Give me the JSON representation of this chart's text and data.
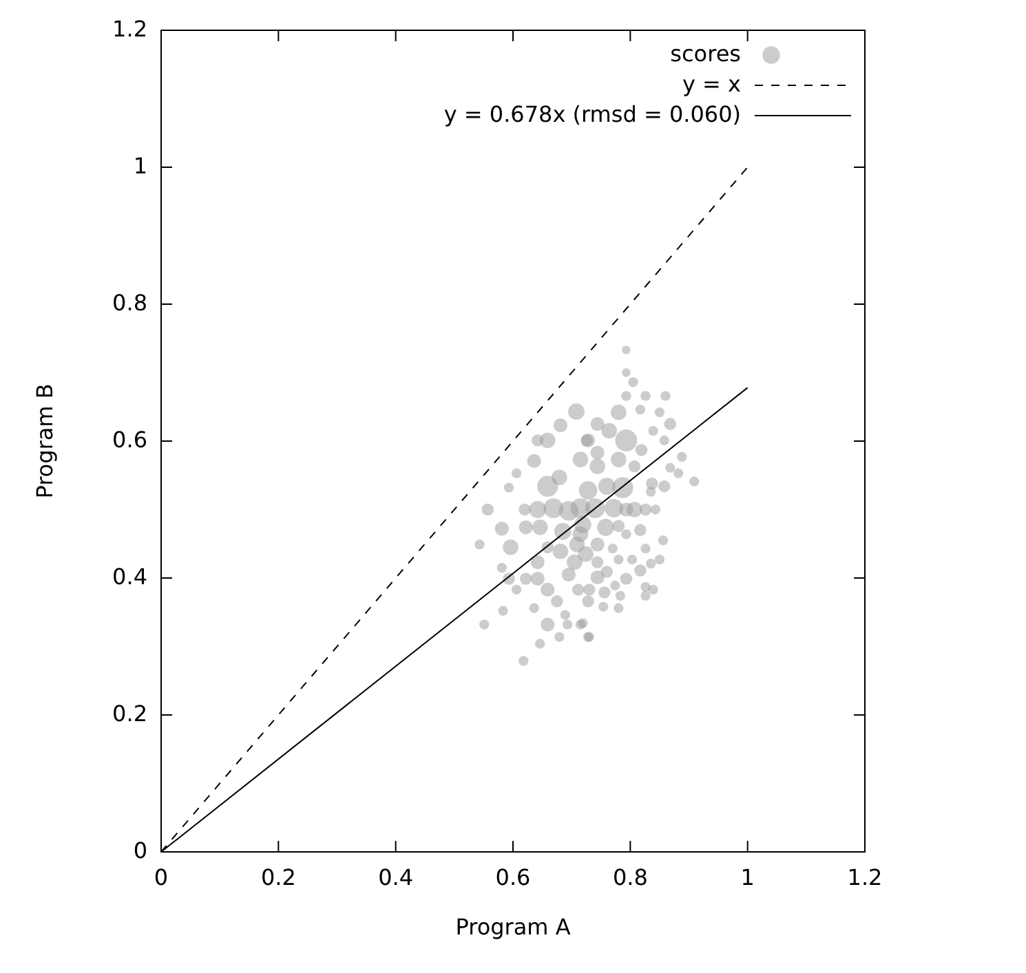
{
  "chart_data": {
    "type": "scatter",
    "xlabel": "Program A",
    "ylabel": "Program B",
    "xlim": [
      0,
      1.2
    ],
    "ylim": [
      0,
      1.2
    ],
    "xticks": [
      0,
      0.2,
      0.4,
      0.6,
      0.8,
      1,
      1.2
    ],
    "yticks": [
      0,
      0.2,
      0.4,
      0.6,
      0.8,
      1,
      1.2
    ],
    "legend": "top right",
    "series": [
      {
        "name": "scores",
        "color": "#999999",
        "marker": "circle",
        "x": [
          0.708,
          0.681,
          0.642,
          0.659,
          0.636,
          0.606,
          0.593,
          0.659,
          0.679,
          0.557,
          0.62,
          0.642,
          0.669,
          0.695,
          0.715,
          0.622,
          0.646,
          0.685,
          0.715,
          0.581,
          0.543,
          0.596,
          0.659,
          0.681,
          0.709,
          0.581,
          0.642,
          0.705,
          0.593,
          0.622,
          0.642,
          0.695,
          0.606,
          0.659,
          0.711,
          0.675,
          0.583,
          0.636,
          0.689,
          0.551,
          0.659,
          0.693,
          0.715,
          0.679,
          0.646,
          0.618,
          0.728,
          0.728,
          0.715,
          0.793,
          0.793,
          0.805,
          0.793,
          0.826,
          0.86,
          0.78,
          0.817,
          0.85,
          0.868,
          0.744,
          0.764,
          0.793,
          0.839,
          0.858,
          0.819,
          0.726,
          0.744,
          0.78,
          0.888,
          0.744,
          0.807,
          0.868,
          0.882,
          0.909,
          0.837,
          0.858,
          0.787,
          0.76,
          0.728,
          0.835,
          0.807,
          0.772,
          0.74,
          0.826,
          0.843,
          0.793,
          0.719,
          0.758,
          0.78,
          0.817,
          0.793,
          0.856,
          0.744,
          0.77,
          0.826,
          0.724,
          0.78,
          0.803,
          0.85,
          0.835,
          0.744,
          0.817,
          0.76,
          0.793,
          0.744,
          0.774,
          0.826,
          0.839,
          0.73,
          0.756,
          0.826,
          0.783,
          0.728,
          0.754,
          0.78,
          0.719,
          0.73
        ],
        "values": [
          0.643,
          0.623,
          0.601,
          0.601,
          0.571,
          0.553,
          0.532,
          0.534,
          0.547,
          0.5,
          0.5,
          0.5,
          0.502,
          0.498,
          0.502,
          0.474,
          0.474,
          0.468,
          0.464,
          0.472,
          0.449,
          0.445,
          0.445,
          0.439,
          0.449,
          0.415,
          0.423,
          0.423,
          0.399,
          0.399,
          0.399,
          0.405,
          0.383,
          0.383,
          0.383,
          0.366,
          0.352,
          0.356,
          0.346,
          0.332,
          0.332,
          0.332,
          0.332,
          0.314,
          0.304,
          0.279,
          0.314,
          0.601,
          0.573,
          0.733,
          0.7,
          0.686,
          0.666,
          0.666,
          0.666,
          0.642,
          0.646,
          0.642,
          0.625,
          0.625,
          0.615,
          0.601,
          0.615,
          0.601,
          0.587,
          0.601,
          0.583,
          0.573,
          0.577,
          0.563,
          0.563,
          0.561,
          0.553,
          0.541,
          0.538,
          0.534,
          0.532,
          0.534,
          0.528,
          0.526,
          0.5,
          0.502,
          0.502,
          0.5,
          0.5,
          0.5,
          0.478,
          0.474,
          0.476,
          0.47,
          0.464,
          0.455,
          0.449,
          0.443,
          0.443,
          0.435,
          0.427,
          0.427,
          0.427,
          0.421,
          0.423,
          0.411,
          0.409,
          0.399,
          0.401,
          0.389,
          0.387,
          0.383,
          0.383,
          0.379,
          0.374,
          0.374,
          0.366,
          0.358,
          0.356,
          0.334,
          0.314
        ],
        "sizes": [
          0.55,
          0.4,
          0.3,
          0.5,
          0.4,
          0.2,
          0.2,
          0.9,
          0.5,
          0.3,
          0.3,
          0.6,
          0.8,
          0.8,
          0.8,
          0.4,
          0.5,
          0.6,
          0.5,
          0.4,
          0.2,
          0.5,
          0.3,
          0.5,
          0.5,
          0.2,
          0.4,
          0.5,
          0.3,
          0.3,
          0.4,
          0.4,
          0.2,
          0.4,
          0.3,
          0.3,
          0.2,
          0.2,
          0.2,
          0.2,
          0.4,
          0.2,
          0.2,
          0.2,
          0.2,
          0.2,
          0.2,
          0.4,
          0.5,
          0.15,
          0.15,
          0.2,
          0.2,
          0.2,
          0.2,
          0.5,
          0.2,
          0.2,
          0.3,
          0.4,
          0.5,
          1,
          0.2,
          0.2,
          0.3,
          0.3,
          0.4,
          0.5,
          0.2,
          0.5,
          0.3,
          0.2,
          0.2,
          0.2,
          0.3,
          0.3,
          0.9,
          0.6,
          0.7,
          0.2,
          0.5,
          0.7,
          0.8,
          0.3,
          0.2,
          0.4,
          0.6,
          0.6,
          0.3,
          0.3,
          0.2,
          0.2,
          0.4,
          0.2,
          0.2,
          0.5,
          0.2,
          0.2,
          0.2,
          0.2,
          0.3,
          0.3,
          0.3,
          0.3,
          0.4,
          0.2,
          0.2,
          0.2,
          0.3,
          0.3,
          0.2,
          0.2,
          0.3,
          0.2,
          0.2,
          0.2,
          0.2
        ]
      },
      {
        "name": "y = x",
        "type": "line",
        "color": "#000000",
        "line_style": "dashed",
        "marker": "none",
        "x": [
          0,
          1
        ],
        "values": [
          0,
          1
        ]
      },
      {
        "name": "y = 0.678x (rmsd = 0.060)",
        "type": "line",
        "color": "#000000",
        "line_style": "solid",
        "marker": "none",
        "x": [
          0,
          1
        ],
        "values": [
          0,
          0.678
        ]
      }
    ]
  }
}
